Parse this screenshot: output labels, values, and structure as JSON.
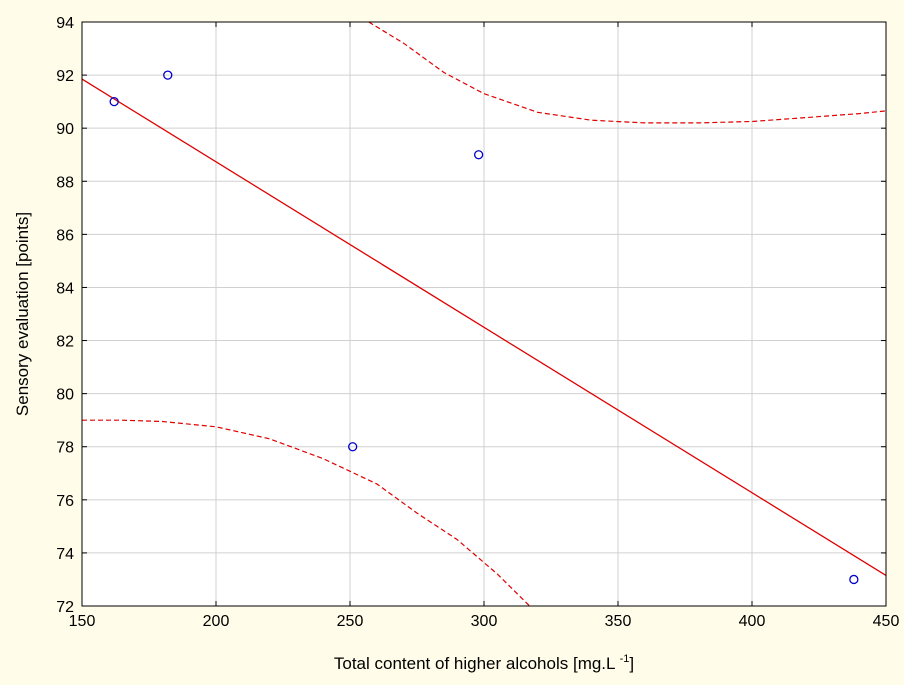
{
  "chart_data": {
    "type": "scatter",
    "xlabel": "Total content of higher alcohols [mg.L ",
    "xlabel_superscript": "-1",
    "xlabel_suffix": "]",
    "ylabel": "Sensory evaluation [points]",
    "xlim": [
      150,
      450
    ],
    "ylim": [
      72,
      94
    ],
    "xticks": [
      "150",
      "200",
      "250",
      "300",
      "350",
      "400",
      "450"
    ],
    "yticks": [
      "72",
      "74",
      "76",
      "78",
      "80",
      "82",
      "84",
      "86",
      "88",
      "90",
      "92",
      "94"
    ],
    "grid": true,
    "points": [
      {
        "x": 162,
        "y": 91
      },
      {
        "x": 182,
        "y": 92
      },
      {
        "x": 251,
        "y": 78
      },
      {
        "x": 298,
        "y": 89
      },
      {
        "x": 438,
        "y": 73
      }
    ],
    "regression_line": [
      {
        "x": 150,
        "y": 91.85
      },
      {
        "x": 450,
        "y": 73.15
      }
    ],
    "upper_confidence_band": [
      {
        "x": 257,
        "y": 94.0
      },
      {
        "x": 270,
        "y": 93.2
      },
      {
        "x": 285,
        "y": 92.1
      },
      {
        "x": 300,
        "y": 91.3
      },
      {
        "x": 320,
        "y": 90.6
      },
      {
        "x": 340,
        "y": 90.3
      },
      {
        "x": 360,
        "y": 90.2
      },
      {
        "x": 380,
        "y": 90.2
      },
      {
        "x": 400,
        "y": 90.25
      },
      {
        "x": 420,
        "y": 90.4
      },
      {
        "x": 440,
        "y": 90.55
      },
      {
        "x": 450,
        "y": 90.65
      }
    ],
    "lower_confidence_band": [
      {
        "x": 150,
        "y": 79.0
      },
      {
        "x": 165,
        "y": 79.0
      },
      {
        "x": 180,
        "y": 78.95
      },
      {
        "x": 200,
        "y": 78.75
      },
      {
        "x": 220,
        "y": 78.3
      },
      {
        "x": 240,
        "y": 77.55
      },
      {
        "x": 260,
        "y": 76.6
      },
      {
        "x": 275,
        "y": 75.5
      },
      {
        "x": 290,
        "y": 74.5
      },
      {
        "x": 305,
        "y": 73.2
      },
      {
        "x": 317,
        "y": 72.0
      }
    ],
    "colors": {
      "background": "#fffde9",
      "plot_area": "#ffffff",
      "grid": "#d0d0d0",
      "points": "#0000cc",
      "line": "#e00000"
    }
  }
}
